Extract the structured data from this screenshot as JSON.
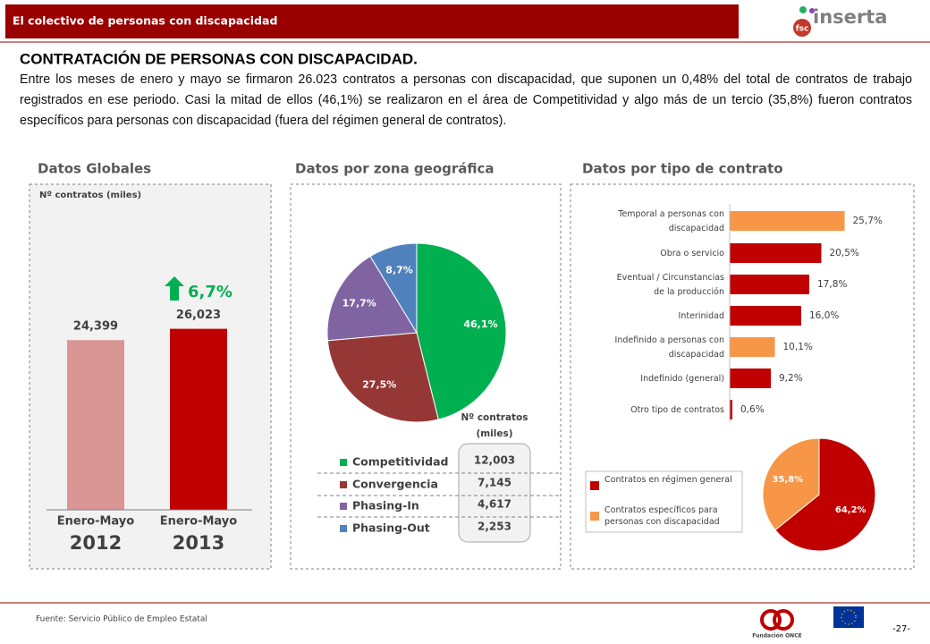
{
  "header": {
    "title": "El colectivo de personas con discapacidad",
    "logo": "inserta",
    "logo_badge": "fsc"
  },
  "heading": "CONTRATACIÓN DE PERSONAS CON DISCAPACIDAD.",
  "intro": "Entre los meses de enero y mayo se firmaron 26.023 contratos a personas con discapacidad, que suponen un 0,48% del total de contratos de trabajo registrados en ese periodo. Casi la mitad de ellos (46,1%) se realizaron en el área de Competitividad y algo más de un tercio (35,8%) fueron contratos específicos para personas con discapacidad (fuera del régimen general de contratos).",
  "sections": [
    "Datos Globales",
    "Datos por zona geográfica",
    "Datos por tipo de contrato"
  ],
  "chart_data": [
    {
      "type": "bar",
      "y_label": "Nº contratos (miles)",
      "categories": [
        [
          "Enero-Mayo",
          "2012"
        ],
        [
          "Enero-Mayo",
          "2013"
        ]
      ],
      "values": [
        24.399,
        26.023
      ],
      "value_labels": [
        "24,399",
        "26,023"
      ],
      "colors": [
        "#d99694",
        "#c00000"
      ],
      "ylim": [
        0,
        45
      ],
      "annotation": "6,7%",
      "annotation_color": "#00b050"
    },
    {
      "type": "pie",
      "categories": [
        "Competitividad",
        "Convergencia",
        "Phasing-In",
        "Phasing-Out"
      ],
      "values": [
        46.1,
        27.5,
        17.7,
        8.7
      ],
      "value_labels": [
        "46,1%",
        "27,5%",
        "17,7%",
        "8,7%"
      ],
      "colors": [
        "#00b050",
        "#953735",
        "#8064a2",
        "#4f81bd"
      ],
      "table_header": [
        "Nº contratos",
        "(miles)"
      ],
      "counts": [
        "12,003",
        "7,145",
        "4,617",
        "2,253"
      ]
    },
    {
      "type": "hbar",
      "categories": [
        [
          "Temporal a personas con",
          "discapacidad"
        ],
        [
          "Obra o servicio"
        ],
        [
          "Eventual / Circunstancias",
          "de la producción"
        ],
        [
          "Interinidad"
        ],
        [
          "Indefinido a personas con",
          "discapacidad"
        ],
        [
          "Indefinido (general)"
        ],
        [
          "Otro tipo de contratos"
        ]
      ],
      "values": [
        25.7,
        20.5,
        17.8,
        16.0,
        10.1,
        9.2,
        0.6
      ],
      "value_labels": [
        "25,7%",
        "20,5%",
        "17,8%",
        "16,0%",
        "10,1%",
        "9,2%",
        "0,6%"
      ],
      "colors": [
        "#f79646",
        "#c00000",
        "#c00000",
        "#c00000",
        "#f79646",
        "#c00000",
        "#c00000"
      ],
      "xlim": [
        0,
        36
      ]
    },
    {
      "type": "pie",
      "categories": [
        "Contratos en régimen general",
        "Contratos específicos para personas con discapacidad"
      ],
      "values": [
        64.2,
        35.8
      ],
      "value_labels": [
        "64,2%",
        "35,8%"
      ],
      "colors": [
        "#c00000",
        "#f79646"
      ]
    }
  ],
  "footer": {
    "source": "Fuente: Servicio Público de Empleo Estatal",
    "page": "-27-",
    "logo_text": "Fundación ONCE"
  }
}
